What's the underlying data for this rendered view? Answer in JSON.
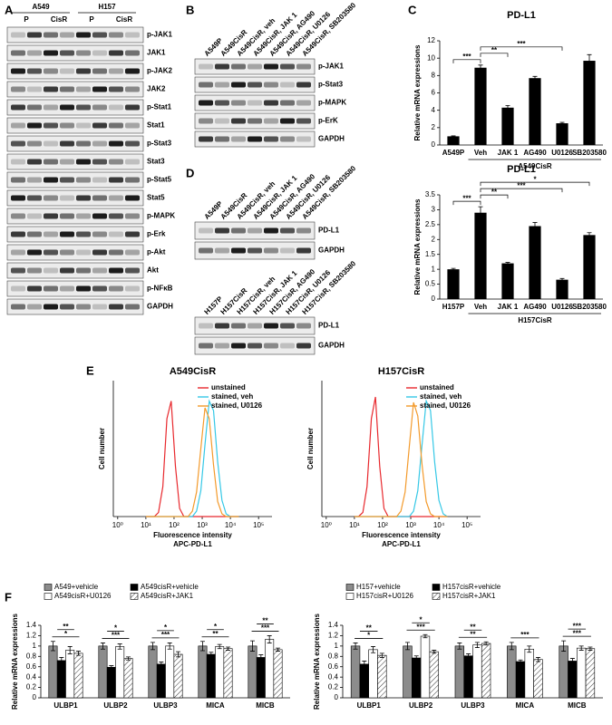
{
  "panel_labels": [
    "A",
    "B",
    "C",
    "D",
    "E",
    "F"
  ],
  "blots": {
    "A": {
      "cell_lines": [
        "A549",
        "H157"
      ],
      "conditions": [
        "P",
        "CisR",
        "P",
        "CisR"
      ],
      "proteins": [
        "p-JAK1",
        "JAK1",
        "p-JAK2",
        "JAK2",
        "p-Stat1",
        "Stat1",
        "p-Stat3",
        "Stat3",
        "p-Stat5",
        "Stat5",
        "p-MAPK",
        "p-Erk",
        "p-Akt",
        "Akt",
        "p-NFκB",
        "GAPDH"
      ]
    },
    "B": {
      "lanes": [
        "A549P",
        "A549CisR",
        "A549CisR, veh",
        "A549CisR, JAK 1",
        "A549CisR, AG490",
        "A549CisR, U0126",
        "A549CisR, SB203580"
      ],
      "proteins": [
        "p-JAK1",
        "p-Stat3",
        "p-MAPK",
        "p-ErK",
        "GAPDH"
      ]
    },
    "D1": {
      "lanes": [
        "A549P",
        "A549CisR",
        "A549CisR, veh",
        "A549CisR, JAK 1",
        "A549CisR, AG490",
        "A549CisR, U0126",
        "A549CisR, SB203580"
      ],
      "proteins": [
        "PD-L1",
        "GAPDH"
      ]
    },
    "D2": {
      "lanes": [
        "H157P",
        "H157CisR",
        "H157CisR, veh",
        "H157CisR, JAK 1",
        "H157CisR, AG490",
        "H157CisR, U0126",
        "H157CisR, SB203580"
      ],
      "proteins": [
        "PD-L1",
        "GAPDH"
      ]
    }
  },
  "chart_data": [
    {
      "type": "bar",
      "title": "PD-L1",
      "y_label": "Relative mRNA expressions",
      "group_label": "A549CisR",
      "categories": [
        "A549P",
        "Veh",
        "JAK 1",
        "AG490",
        "U0126",
        "SB203580"
      ],
      "values": [
        1,
        8.9,
        4.3,
        7.7,
        2.5,
        9.7
      ],
      "errors": [
        0.05,
        0.3,
        0.25,
        0.2,
        0.1,
        0.7
      ],
      "color": "#000000",
      "ylim": [
        0,
        12
      ],
      "yticks": [
        0,
        2,
        4,
        6,
        8,
        10,
        12
      ],
      "annotations": [
        {
          "text": "***",
          "between": [
            "A549P",
            "Veh"
          ]
        },
        {
          "text": "**",
          "between": [
            "Veh",
            "JAK 1"
          ]
        },
        {
          "text": "***",
          "between": [
            "Veh",
            "U0126"
          ]
        }
      ]
    },
    {
      "type": "bar",
      "title": "PD-L1",
      "y_label": "Relative mRNA expressions",
      "group_label": "H157CisR",
      "categories": [
        "H157P",
        "Veh",
        "JAK 1",
        "AG490",
        "U0126",
        "SB203580"
      ],
      "values": [
        1,
        2.9,
        1.2,
        2.45,
        0.65,
        2.15
      ],
      "errors": [
        0.03,
        0.2,
        0.03,
        0.12,
        0.04,
        0.08
      ],
      "color": "#000000",
      "ylim": [
        0,
        3.5
      ],
      "yticks": [
        0,
        0.5,
        1,
        1.5,
        2,
        2.5,
        3,
        3.5
      ],
      "annotations": [
        {
          "text": "***",
          "between": [
            "H157P",
            "Veh"
          ]
        },
        {
          "text": "**",
          "between": [
            "Veh",
            "JAK 1"
          ]
        },
        {
          "text": "***",
          "between": [
            "Veh",
            "U0126"
          ]
        },
        {
          "text": "*",
          "between": [
            "Veh",
            "SB203580"
          ]
        }
      ]
    },
    {
      "type": "line",
      "title": "A549CisR",
      "x_label": "Fluorescence intensity",
      "x_label_2": "APC-PD-L1",
      "y_label": "Cell number",
      "x_scale": "log",
      "legend": "upper right",
      "x": [
        10,
        14,
        20,
        28,
        40,
        56,
        79,
        112,
        158,
        224,
        316,
        447,
        631,
        891,
        1259,
        1778,
        2512,
        3548,
        5012,
        7079,
        10000,
        14125,
        19953
      ],
      "xlim": [
        0.7,
        300000
      ],
      "ylim": [
        0,
        100
      ],
      "xticks": [
        {
          "value": 1,
          "label": "10⁰"
        },
        {
          "value": 10,
          "label": "10¹"
        },
        {
          "value": 100,
          "label": "10²"
        },
        {
          "value": 1000,
          "label": "10³"
        },
        {
          "value": 10000,
          "label": "10⁴"
        },
        {
          "value": 100000,
          "label": "10⁵"
        }
      ],
      "series": [
        {
          "name": "unstained",
          "color": "#e8282d",
          "values": [
            0,
            0,
            0,
            3,
            22,
            72,
            85,
            37,
            6,
            0,
            0,
            0,
            0,
            0,
            0,
            0,
            0,
            0,
            0,
            0,
            0,
            0,
            0
          ]
        },
        {
          "name": "stained, veh",
          "color": "#35c8e6",
          "values": [
            0,
            0,
            0,
            0,
            0,
            0,
            0,
            0,
            0,
            0,
            0,
            0,
            4,
            19,
            53,
            85,
            78,
            40,
            12,
            2,
            0,
            0,
            0
          ]
        },
        {
          "name": "stained, U0126",
          "color": "#f39a2b",
          "values": [
            0,
            0,
            0,
            0,
            0,
            0,
            0,
            0,
            0,
            0,
            0,
            4,
            18,
            50,
            80,
            72,
            38,
            11,
            2,
            0,
            0,
            0,
            0
          ]
        }
      ]
    },
    {
      "type": "line",
      "title": "H157CisR",
      "x_label": "Fluorescence intensity",
      "x_label_2": "APC-PD-L1",
      "y_label": "Cell number",
      "x_scale": "log",
      "legend": "upper right",
      "x": [
        10,
        14,
        20,
        28,
        40,
        56,
        79,
        112,
        158,
        224,
        316,
        447,
        631,
        891,
        1259,
        1778,
        2512,
        3548,
        5012,
        7079,
        10000,
        14125,
        19953
      ],
      "xlim": [
        0.7,
        300000
      ],
      "ylim": [
        0,
        100
      ],
      "xticks": [
        {
          "value": 1,
          "label": "10⁰"
        },
        {
          "value": 10,
          "label": "10¹"
        },
        {
          "value": 100,
          "label": "10²"
        },
        {
          "value": 1000,
          "label": "10³"
        },
        {
          "value": 10000,
          "label": "10⁴"
        },
        {
          "value": 100000,
          "label": "10⁵"
        }
      ],
      "series": [
        {
          "name": "unstained",
          "color": "#e8282d",
          "values": [
            0,
            0,
            3,
            22,
            72,
            88,
            37,
            6,
            0,
            0,
            0,
            0,
            0,
            0,
            0,
            0,
            0,
            0,
            0,
            0,
            0,
            0,
            0
          ]
        },
        {
          "name": "stained, veh",
          "color": "#35c8e6",
          "values": [
            0,
            0,
            0,
            0,
            0,
            0,
            0,
            0,
            0,
            0,
            0,
            0,
            0,
            0,
            4,
            19,
            53,
            85,
            78,
            40,
            12,
            2,
            0
          ]
        },
        {
          "name": "stained, U0126",
          "color": "#f39a2b",
          "values": [
            0,
            0,
            0,
            0,
            0,
            0,
            0,
            0,
            0,
            0,
            0,
            4,
            18,
            52,
            84,
            74,
            38,
            11,
            2,
            0,
            0,
            0,
            0
          ]
        }
      ]
    },
    {
      "type": "grouped_bar",
      "y_label": "Relative mRNA expressions",
      "categories": [
        "ULBP1",
        "ULBP2",
        "ULBP3",
        "MICA",
        "MICB"
      ],
      "ylim": [
        0,
        1.4
      ],
      "yticks": [
        0,
        0.2,
        0.4,
        0.6,
        0.8,
        1,
        1.2,
        1.4
      ],
      "series": [
        {
          "name": "A549+vehicle",
          "color": "#8c8c8c",
          "values": [
            1,
            1,
            1,
            1,
            1
          ],
          "errors": [
            0.09,
            0.06,
            0.07,
            0.09,
            0.1
          ]
        },
        {
          "name": "A549cisR+vehicle",
          "color": "#000000",
          "values": [
            0.72,
            0.59,
            0.65,
            0.84,
            0.78
          ],
          "errors": [
            0.06,
            0.03,
            0.04,
            0.04,
            0.05
          ]
        },
        {
          "name": "A549cisR+U0126",
          "color": "#ffffff",
          "values": [
            0.92,
            0.99,
            1,
            0.99,
            1.13
          ],
          "errors": [
            0.07,
            0.05,
            0.06,
            0.04,
            0.07
          ]
        },
        {
          "name": "A549cisR+JAK1",
          "color": "#ffffff",
          "pattern": "diagonal",
          "values": [
            0.86,
            0.76,
            0.84,
            0.95,
            0.93
          ],
          "errors": [
            0.04,
            0.03,
            0.05,
            0.03,
            0.03
          ]
        }
      ],
      "annotations": [
        {
          "text": "*",
          "category": "ULBP1"
        },
        {
          "text": "**",
          "category": "ULBP1"
        },
        {
          "text": "***",
          "category": "ULBP2"
        },
        {
          "text": "*",
          "category": "ULBP2"
        },
        {
          "text": "***",
          "category": "ULBP3"
        },
        {
          "text": "*",
          "category": "ULBP3"
        },
        {
          "text": "**",
          "category": "MICA"
        },
        {
          "text": "*",
          "category": "MICA"
        },
        {
          "text": "***",
          "category": "MICB"
        },
        {
          "text": "**",
          "category": "MICB"
        }
      ]
    },
    {
      "type": "grouped_bar",
      "y_label": "Relative mRNA expressions",
      "categories": [
        "ULBP1",
        "ULBP2",
        "ULBP3",
        "MICA",
        "MICB"
      ],
      "ylim": [
        0,
        1.4
      ],
      "yticks": [
        0,
        0.2,
        0.4,
        0.6,
        0.8,
        1,
        1.2,
        1.4
      ],
      "series": [
        {
          "name": "H157+vehicle",
          "color": "#8c8c8c",
          "values": [
            1,
            1,
            1,
            1,
            1
          ],
          "errors": [
            0.06,
            0.07,
            0.06,
            0.07,
            0.1
          ]
        },
        {
          "name": "H157cisR+vehicle",
          "color": "#000000",
          "values": [
            0.65,
            0.77,
            0.81,
            0.7,
            0.71
          ],
          "errors": [
            0.06,
            0.04,
            0.04,
            0.03,
            0.05
          ]
        },
        {
          "name": "H157cisR+U0126",
          "color": "#ffffff",
          "values": [
            0.93,
            1.19,
            1.02,
            0.94,
            0.96
          ],
          "errors": [
            0.06,
            0.03,
            0.05,
            0.06,
            0.04
          ]
        },
        {
          "name": "H157cisR+JAK1",
          "color": "#ffffff",
          "pattern": "diagonal",
          "values": [
            0.82,
            0.89,
            1.05,
            0.74,
            0.95
          ],
          "errors": [
            0.04,
            0.03,
            0.03,
            0.04,
            0.03
          ]
        }
      ],
      "annotations": [
        {
          "text": "*",
          "category": "ULBP1"
        },
        {
          "text": "**",
          "category": "ULBP1"
        },
        {
          "text": "***",
          "category": "ULBP2"
        },
        {
          "text": "*",
          "category": "ULBP2"
        },
        {
          "text": "**",
          "category": "ULBP3"
        },
        {
          "text": "**",
          "category": "ULBP3"
        },
        {
          "text": "***",
          "category": "MICA"
        },
        {
          "text": "***",
          "category": "MICB"
        },
        {
          "text": "***",
          "category": "MICB"
        }
      ]
    }
  ]
}
